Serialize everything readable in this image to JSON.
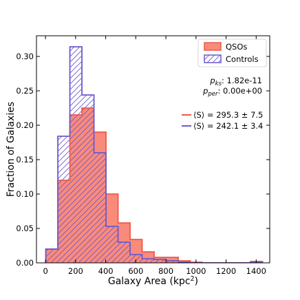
{
  "chart_data": {
    "type": "histogram",
    "xlabel": "Galaxy Area (kpc²)",
    "ylabel": "Fraction of Galaxies",
    "xlim": [
      -60,
      1490
    ],
    "ylim": [
      0,
      0.33
    ],
    "x_ticks": [
      0,
      200,
      400,
      600,
      800,
      1000,
      1200,
      1400
    ],
    "y_ticks": [
      0.0,
      0.05,
      0.1,
      0.15,
      0.2,
      0.25,
      0.3
    ],
    "x_tick_labels": [
      "0",
      "200",
      "400",
      "600",
      "800",
      "1000",
      "1200",
      "1400"
    ],
    "y_tick_labels": [
      "0.00",
      "0.05",
      "0.10",
      "0.15",
      "0.20",
      "0.25",
      "0.30"
    ],
    "bin_edges": [
      2,
      82,
      162,
      242,
      322,
      402,
      482,
      562,
      642,
      722,
      802,
      882,
      962,
      1042,
      1122,
      1202,
      1282,
      1362,
      1442
    ],
    "series": [
      {
        "name": "QSOs",
        "style": "filled",
        "fill": "#fa8a7a",
        "edge": "#f0584a",
        "values": [
          0.02,
          0.12,
          0.215,
          0.225,
          0.19,
          0.1,
          0.058,
          0.034,
          0.016,
          0.008,
          0.008,
          0.003,
          0.001,
          0.0,
          0.0,
          0.0,
          0.0,
          0.002
        ]
      },
      {
        "name": "Controls",
        "style": "hatched",
        "edge": "#6a5acd",
        "values": [
          0.02,
          0.184,
          0.314,
          0.244,
          0.16,
          0.053,
          0.03,
          0.012,
          0.006,
          0.005,
          0.003,
          0.001,
          0.0,
          0.0,
          0.0,
          0.0,
          0.0,
          0.001
        ]
      }
    ],
    "legend": {
      "placement": "top-right",
      "entries": [
        "QSOs",
        "Controls"
      ]
    },
    "stats": {
      "ks_label": "p",
      "ks_sub": "ks",
      "ks_value": ": 1.82e-11",
      "per_label": "p",
      "per_sub": "per",
      "per_value": ": 0.00e+00"
    },
    "means": [
      {
        "color": "#f0584a",
        "text": "⟨S⟩ = 295.3 ± 7.5"
      },
      {
        "color": "#6a5acd",
        "text": "⟨S⟩ = 242.1 ± 3.4"
      }
    ]
  }
}
